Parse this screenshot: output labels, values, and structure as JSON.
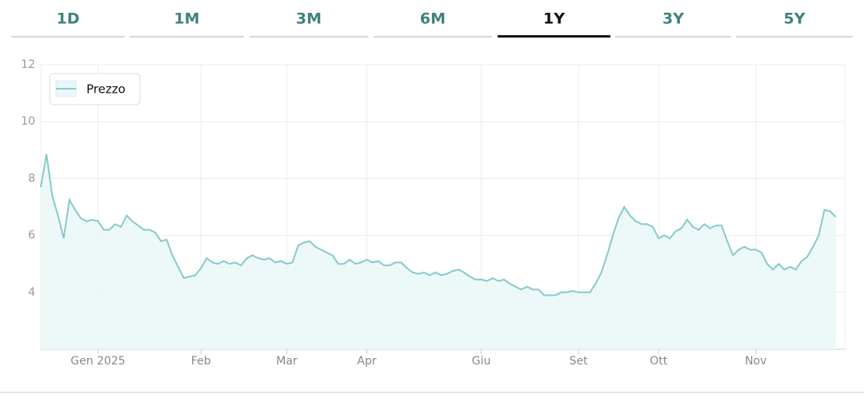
{
  "tabs": {
    "items": [
      "1D",
      "1M",
      "3M",
      "6M",
      "1Y",
      "3Y",
      "5Y"
    ],
    "active": 4
  },
  "chart_data": {
    "type": "line",
    "series": [
      {
        "name": "Prezzo",
        "color": "#88c9ca",
        "fill": "#e9f7f8",
        "values": [
          7.7,
          8.85,
          7.4,
          6.7,
          5.9,
          7.25,
          6.9,
          6.6,
          6.5,
          6.55,
          6.5,
          6.2,
          6.2,
          6.4,
          6.3,
          6.7,
          6.5,
          6.35,
          6.2,
          6.2,
          6.1,
          5.8,
          5.85,
          5.3,
          4.9,
          4.5,
          4.55,
          4.6,
          4.85,
          5.2,
          5.05,
          5.0,
          5.1,
          5.0,
          5.05,
          4.95,
          5.2,
          5.3,
          5.2,
          5.15,
          5.2,
          5.05,
          5.1,
          5.0,
          5.05,
          5.65,
          5.75,
          5.8,
          5.6,
          5.5,
          5.4,
          5.3,
          5.0,
          5.0,
          5.15,
          5.0,
          5.05,
          5.15,
          5.05,
          5.1,
          4.95,
          4.95,
          5.05,
          5.05,
          4.85,
          4.7,
          4.65,
          4.7,
          4.6,
          4.7,
          4.6,
          4.65,
          4.75,
          4.8,
          4.7,
          4.55,
          4.45,
          4.45,
          4.4,
          4.5,
          4.4,
          4.45,
          4.3,
          4.2,
          4.1,
          4.2,
          4.1,
          4.1,
          3.9,
          3.9,
          3.9,
          4.0,
          4.0,
          4.05,
          4.0,
          4.0,
          4.0,
          4.3,
          4.7,
          5.3,
          6.0,
          6.6,
          7.0,
          6.7,
          6.5,
          6.4,
          6.4,
          6.3,
          5.9,
          6.0,
          5.9,
          6.15,
          6.25,
          6.55,
          6.3,
          6.2,
          6.4,
          6.25,
          6.35,
          6.35,
          5.8,
          5.3,
          5.5,
          5.6,
          5.5,
          5.5,
          5.4,
          5.0,
          4.8,
          5.0,
          4.8,
          4.9,
          4.8,
          5.1,
          5.25,
          5.6,
          6.0,
          6.9,
          6.85,
          6.65
        ]
      }
    ],
    "xlim": [
      0,
      140
    ],
    "xticks": [
      {
        "value": 10,
        "label": "Gen 2025"
      },
      {
        "value": 28,
        "label": "Feb"
      },
      {
        "value": 43,
        "label": "Mar"
      },
      {
        "value": 57,
        "label": "Apr"
      },
      {
        "value": 77,
        "label": "Giu"
      },
      {
        "value": 94,
        "label": "Set"
      },
      {
        "value": 108,
        "label": "Ott"
      },
      {
        "value": 125,
        "label": "Nov"
      }
    ],
    "ylim": [
      2,
      12
    ],
    "yticks": [
      4,
      6,
      8,
      10,
      12
    ],
    "grid": true,
    "legend": "top-left"
  }
}
